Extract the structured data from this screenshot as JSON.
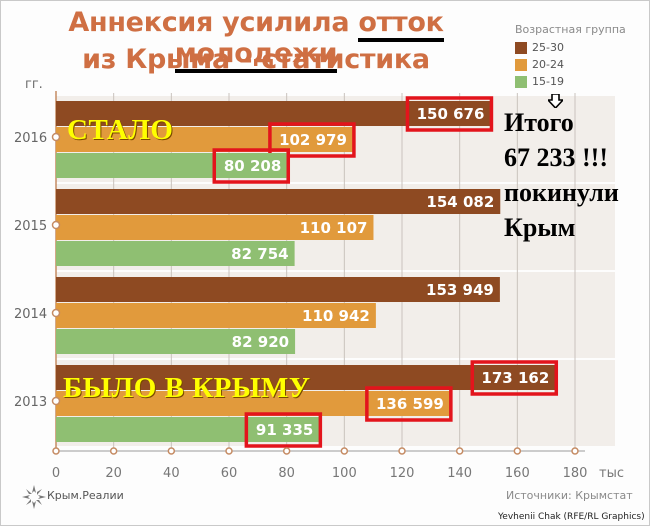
{
  "title": {
    "line1_pre": "Аннексия усилила ",
    "line1_underlined": "отток молодежи",
    "line2": "из Крыма – статистика"
  },
  "legend": {
    "title": "Возрастная группа",
    "items": [
      {
        "label": "25-30",
        "color": "#8e4a22"
      },
      {
        "label": "20-24",
        "color": "#e19a3c"
      },
      {
        "label": "15-19",
        "color": "#8fbf72"
      }
    ]
  },
  "y_axis_label": "гг.",
  "x_axis_unit": "тыс",
  "chart_data": {
    "type": "bar",
    "orientation": "horizontal",
    "categories": [
      "2016",
      "2015",
      "2014",
      "2013"
    ],
    "series": [
      {
        "name": "25-30",
        "color": "#8e4a22",
        "values": [
          150676,
          154082,
          153949,
          173162
        ],
        "labels": [
          "150 676",
          "154 082",
          "153 949",
          "173 162"
        ]
      },
      {
        "name": "20-24",
        "color": "#e19a3c",
        "values": [
          102979,
          110107,
          110942,
          136599
        ],
        "labels": [
          "102 979",
          "110 107",
          "110 942",
          "136 599"
        ]
      },
      {
        "name": "15-19",
        "color": "#8fbf72",
        "values": [
          80208,
          82754,
          82920,
          91335
        ],
        "labels": [
          "80 208",
          "82 754",
          "82 920",
          "91 335"
        ]
      }
    ],
    "xlim": [
      0,
      180000
    ],
    "x_ticks": [
      0,
      20000,
      40000,
      60000,
      80000,
      100000,
      120000,
      140000,
      160000,
      180000
    ],
    "x_tick_labels": [
      "0",
      "20",
      "40",
      "60",
      "80",
      "100",
      "120",
      "140",
      "160",
      "180"
    ],
    "grid": "vertical",
    "legend_position": "top-right",
    "highlighted": [
      {
        "category": "2016",
        "series": "25-30"
      },
      {
        "category": "2016",
        "series": "20-24"
      },
      {
        "category": "2016",
        "series": "15-19"
      },
      {
        "category": "2013",
        "series": "25-30"
      },
      {
        "category": "2013",
        "series": "20-24"
      },
      {
        "category": "2013",
        "series": "15-19"
      }
    ]
  },
  "annotations": {
    "stalo": "СТАЛО",
    "bylo": "БЫЛО В КРЫМУ",
    "total_lines": [
      "Итого",
      "67 233 !!!",
      "покинули",
      "Крым"
    ],
    "highlight_color": "#e3141c",
    "overlay_text_color": "#ffff00"
  },
  "footer": {
    "logo_text": "Крым.Реалии",
    "source": "Источники: Крымстат",
    "credit": "Yevhenii Chak (RFE/RL Graphics)"
  }
}
